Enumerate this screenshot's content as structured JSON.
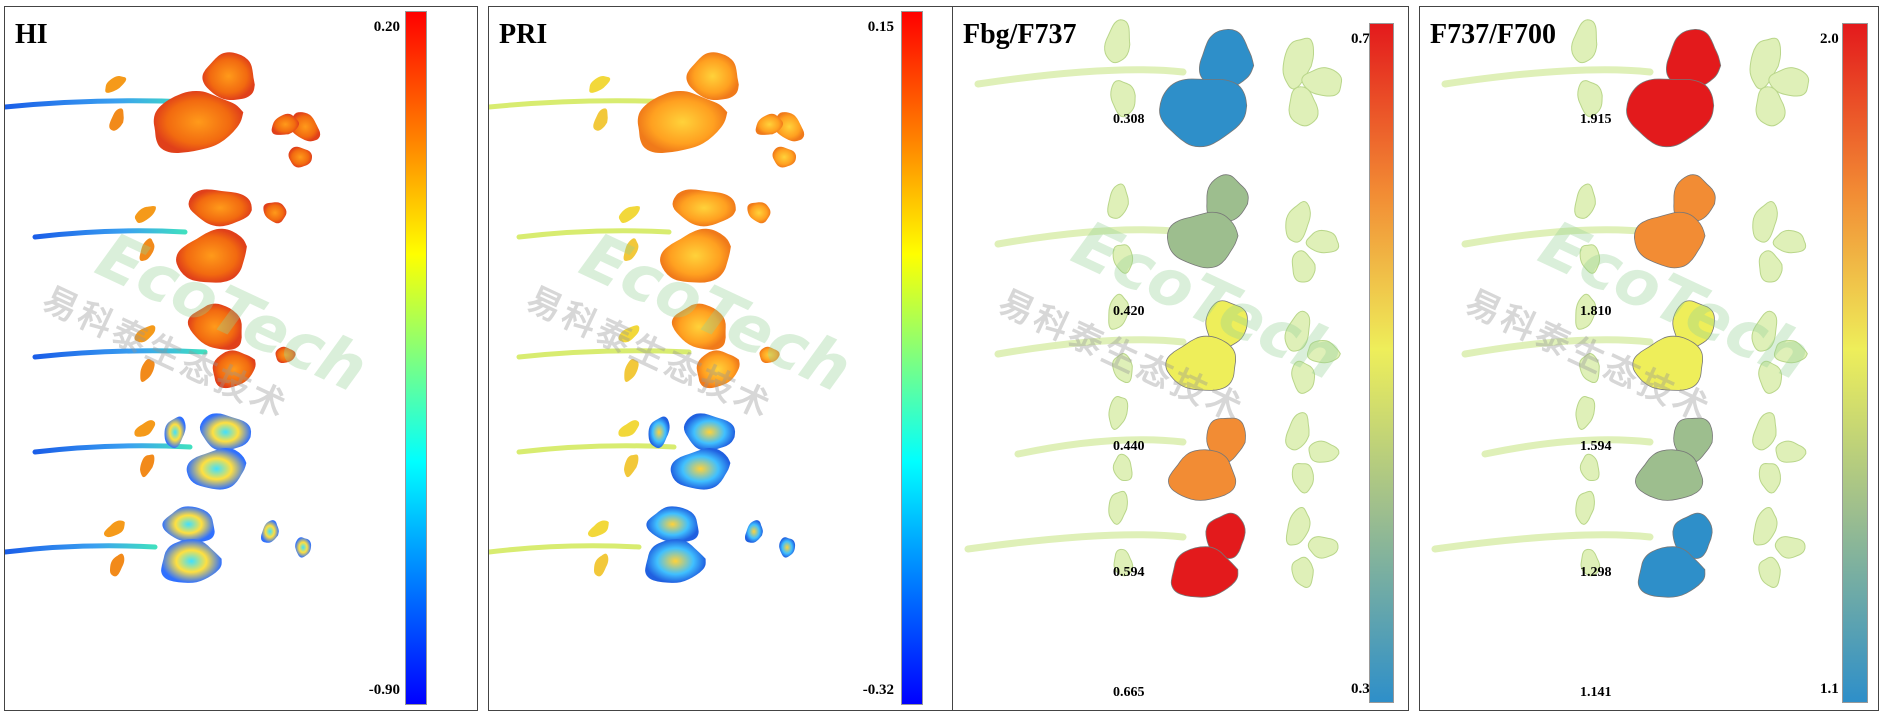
{
  "panels": [
    {
      "title": "HI",
      "cb_max": "0.20",
      "cb_min": "-0.90",
      "scheme": "jet"
    },
    {
      "title": "PRI",
      "cb_max": "0.15",
      "cb_min": "-0.32",
      "scheme": "jet"
    },
    {
      "title": "Fbg/F737",
      "cb_max": "0.7",
      "cb_min": "0.3",
      "scheme": "rdylbu",
      "plants": [
        {
          "value": "0.308",
          "color": "#2E8FC9"
        },
        {
          "value": "0.420",
          "color": "#9DBE8E"
        },
        {
          "value": "0.440",
          "color": "#EEEE5A"
        },
        {
          "value": "0.594",
          "color": "#F28C34"
        },
        {
          "value": "0.665",
          "color": "#E31A1C"
        }
      ]
    },
    {
      "title": "F737/F700",
      "cb_max": "2.0",
      "cb_min": "1.1",
      "scheme": "rdylbu",
      "plants": [
        {
          "value": "1.915",
          "color": "#E31A1C"
        },
        {
          "value": "1.810",
          "color": "#F28C34"
        },
        {
          "value": "1.594",
          "color": "#EEEE5A"
        },
        {
          "value": "1.298",
          "color": "#9DBE8E"
        },
        {
          "value": "1.141",
          "color": "#2E8FC9"
        }
      ]
    }
  ],
  "watermark": {
    "cn": "易科泰生态技术",
    "logo": "EcoTech"
  }
}
